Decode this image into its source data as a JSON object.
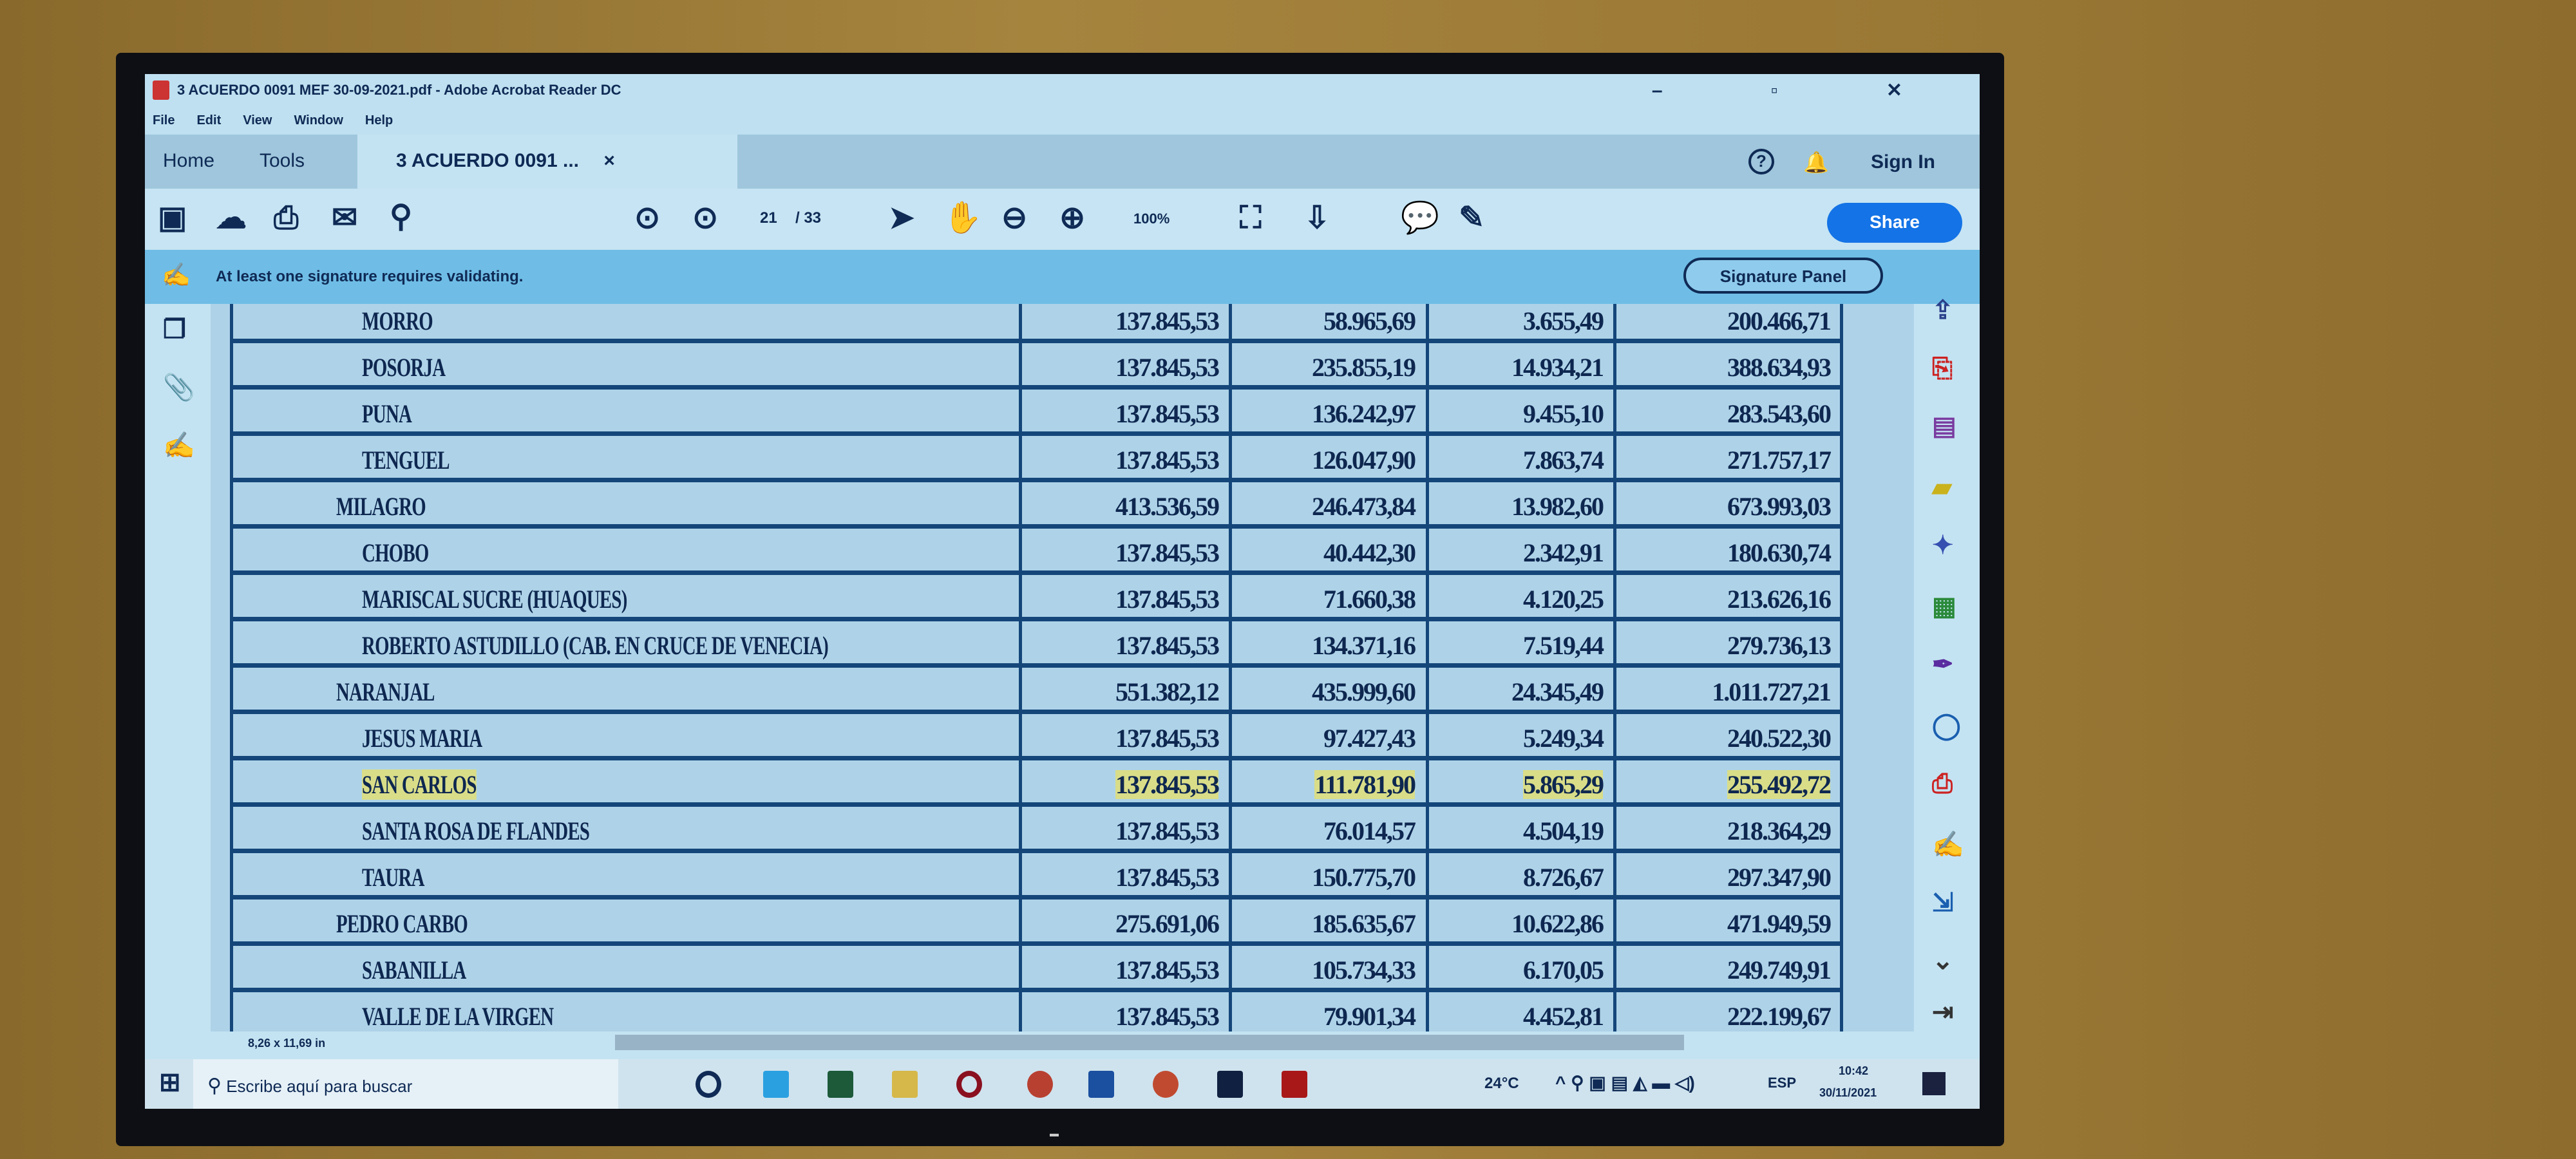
{
  "window": {
    "title": "3 ACUERDO 0091 MEF 30-09-2021.pdf - Adobe Acrobat Reader DC",
    "controls": "– ▫ ✕"
  },
  "menu": [
    "File",
    "Edit",
    "View",
    "Window",
    "Help"
  ],
  "tabs": {
    "home": "Home",
    "tools": "Tools",
    "document": "3 ACUERDO 0091 ...",
    "close": "×",
    "help": "?",
    "sign_in": "Sign In"
  },
  "toolbar": {
    "page_current": "21",
    "page_total": "/ 33",
    "zoom": "100%",
    "share": "Share"
  },
  "signature_bar": {
    "message": "At least one signature requires validating.",
    "button": "Signature Panel"
  },
  "table": {
    "rows": [
      {
        "name": "MORRO",
        "level": 2,
        "c1": "137.845,53",
        "c2": "58.965,69",
        "c3": "3.655,49",
        "c4": "200.466,71"
      },
      {
        "name": "POSORJA",
        "level": 2,
        "c1": "137.845,53",
        "c2": "235.855,19",
        "c3": "14.934,21",
        "c4": "388.634,93"
      },
      {
        "name": "PUNA",
        "level": 2,
        "c1": "137.845,53",
        "c2": "136.242,97",
        "c3": "9.455,10",
        "c4": "283.543,60"
      },
      {
        "name": "TENGUEL",
        "level": 2,
        "c1": "137.845,53",
        "c2": "126.047,90",
        "c3": "7.863,74",
        "c4": "271.757,17"
      },
      {
        "name": "MILAGRO",
        "level": 1,
        "c1": "413.536,59",
        "c2": "246.473,84",
        "c3": "13.982,60",
        "c4": "673.993,03"
      },
      {
        "name": "CHOBO",
        "level": 2,
        "c1": "137.845,53",
        "c2": "40.442,30",
        "c3": "2.342,91",
        "c4": "180.630,74"
      },
      {
        "name": "MARISCAL SUCRE (HUAQUES)",
        "level": 2,
        "c1": "137.845,53",
        "c2": "71.660,38",
        "c3": "4.120,25",
        "c4": "213.626,16"
      },
      {
        "name": "ROBERTO ASTUDILLO (CAB. EN CRUCE DE VENECIA)",
        "level": 2,
        "c1": "137.845,53",
        "c2": "134.371,16",
        "c3": "7.519,44",
        "c4": "279.736,13"
      },
      {
        "name": "NARANJAL",
        "level": 1,
        "c1": "551.382,12",
        "c2": "435.999,60",
        "c3": "24.345,49",
        "c4": "1.011.727,21"
      },
      {
        "name": "JESUS MARIA",
        "level": 2,
        "c1": "137.845,53",
        "c2": "97.427,43",
        "c3": "5.249,34",
        "c4": "240.522,30"
      },
      {
        "name": "SAN CARLOS",
        "level": 2,
        "highlight": true,
        "c1": "137.845,53",
        "c2": "111.781,90",
        "c3": "5.865,29",
        "c4": "255.492,72"
      },
      {
        "name": "SANTA ROSA DE FLANDES",
        "level": 2,
        "c1": "137.845,53",
        "c2": "76.014,57",
        "c3": "4.504,19",
        "c4": "218.364,29"
      },
      {
        "name": "TAURA",
        "level": 2,
        "c1": "137.845,53",
        "c2": "150.775,70",
        "c3": "8.726,67",
        "c4": "297.347,90"
      },
      {
        "name": "PEDRO CARBO",
        "level": 1,
        "c1": "275.691,06",
        "c2": "185.635,67",
        "c3": "10.622,86",
        "c4": "471.949,59"
      },
      {
        "name": "SABANILLA",
        "level": 2,
        "c1": "137.845,53",
        "c2": "105.734,33",
        "c3": "6.170,05",
        "c4": "249.749,91"
      },
      {
        "name": "VALLE DE LA VIRGEN",
        "level": 2,
        "c1": "137.845,53",
        "c2": "79.901,34",
        "c3": "4.452,81",
        "c4": "222.199,67"
      }
    ]
  },
  "status": {
    "page_size": "8,26 x 11,69 in"
  },
  "taskbar": {
    "search_placeholder": "Escribe aquí para buscar",
    "temperature": "24°C",
    "language": "ESP",
    "time": "10:42",
    "date": "30/11/2021"
  },
  "colors": {
    "highlight": "#d9dd88",
    "share_button": "#1473e6",
    "table_border": "#14467a"
  }
}
